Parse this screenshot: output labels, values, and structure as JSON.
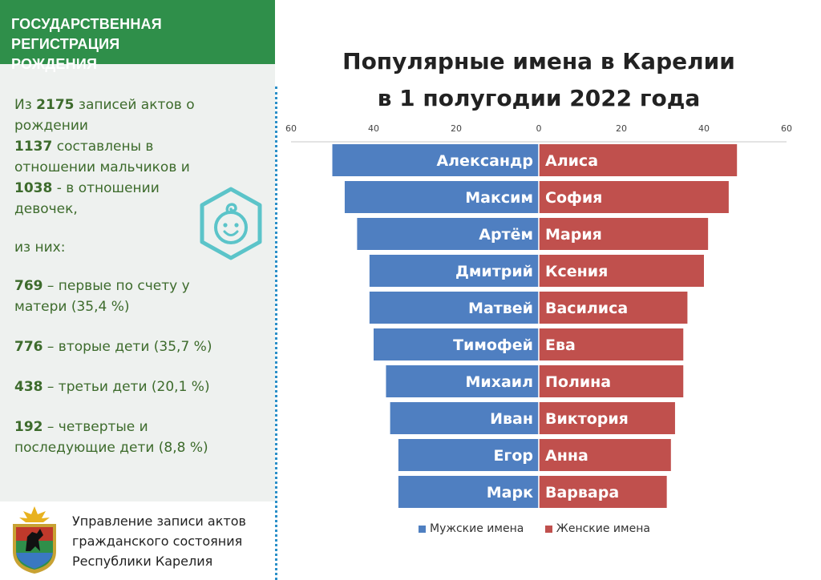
{
  "header": {
    "line1": "ГОСУДАРСТВЕННАЯ РЕГИСТРАЦИЯ",
    "line2": "РОЖДЕНИЯ"
  },
  "stats": {
    "l1_pre": "Из ",
    "l1_num": "2175",
    "l1_post": " записей актов о",
    "l2": "рождении",
    "l3_num": "1137",
    "l3_post": " составлены в",
    "l4": "отношении мальчиков и",
    "l5_num": "1038",
    "l5_post": " - в отношении",
    "l6": "девочек,",
    "l7": "из них:",
    "s1_num": "769",
    "s1_post": " – первые по счету у",
    "s1_l2": "матери (35,4 %)",
    "s2_num": "776",
    "s2_post": " – вторые дети (35,7 %)",
    "s3_num": "438",
    "s3_post": " – третьи дети (20,1 %)",
    "s4_num": "192",
    "s4_post": " – четвертые и",
    "s4_l2": "последующие дети (8,8 %)"
  },
  "footer": {
    "line1": "Управление записи актов",
    "line2": "гражданского состояния",
    "line3": "Республики Карелия"
  },
  "colors": {
    "green": "#2f8f4a",
    "male": "#4f7fc1",
    "female": "#c0504d",
    "text_green": "#3d6b2c",
    "divider": "#2a8fc8"
  },
  "chart_data": {
    "type": "bar",
    "title": "Популярные имена в Карелии в 1 полугодии 2022 года",
    "title_line1": "Популярные имена в Карелии",
    "title_line2": "в 1 полугодии 2022 года",
    "axis_ticks": [
      "60",
      "40",
      "20",
      "0",
      "20",
      "40",
      "60"
    ],
    "xlim": [
      -60,
      60
    ],
    "series": [
      {
        "name": "Мужские имена",
        "names": [
          "Александр",
          "Максим",
          "Артём",
          "Дмитрий",
          "Матвей",
          "Тимофей",
          "Михаил",
          "Иван",
          "Егор",
          "Марк"
        ],
        "values": [
          50,
          47,
          44,
          41,
          41,
          40,
          37,
          36,
          34,
          34
        ]
      },
      {
        "name": "Женские имена",
        "names": [
          "Алиса",
          "София",
          "Мария",
          "Ксения",
          "Василиса",
          "Ева",
          "Полина",
          "Виктория",
          "Анна",
          "Варвара"
        ],
        "values": [
          48,
          46,
          41,
          40,
          36,
          35,
          35,
          33,
          32,
          31
        ]
      }
    ],
    "legend_position": "bottom"
  }
}
